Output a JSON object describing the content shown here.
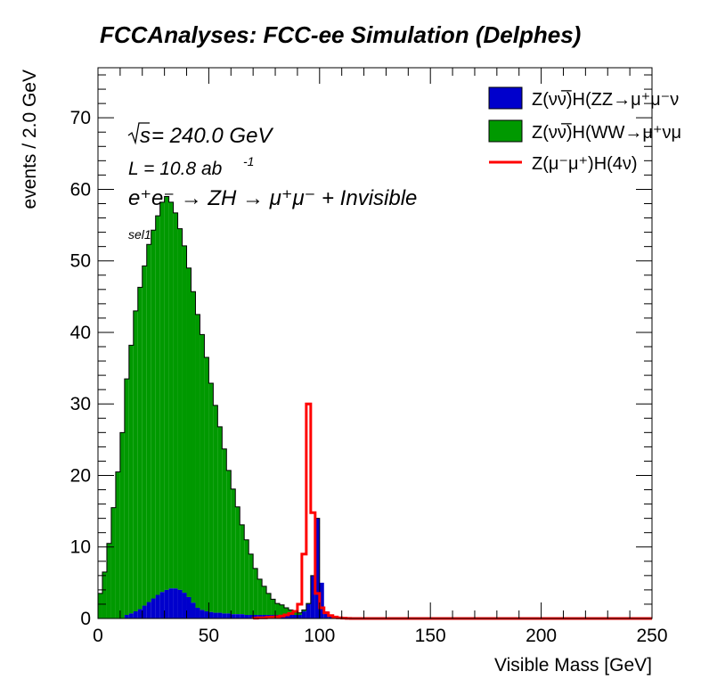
{
  "chart_data": {
    "type": "bar",
    "title": "FCCAnalyses: FCC-ee Simulation (Delphes)",
    "xlabel": "Visible Mass [GeV]",
    "ylabel": "events / 2.0 GeV",
    "xlim": [
      0,
      250
    ],
    "ylim": [
      0,
      77
    ],
    "bin_width": 2.0,
    "x_ticks": [
      "0",
      "50",
      "100",
      "150",
      "200",
      "250"
    ],
    "y_ticks": [
      "0",
      "10",
      "20",
      "30",
      "40",
      "50",
      "60",
      "70"
    ],
    "annotations": {
      "sqrt_s_prefix": "s",
      "sqrt_s_value": " = 240.0 GeV",
      "lumi_prefix": "L = 10.8 ab",
      "lumi_exp": "-1",
      "process": "e⁺e⁻ → ZH → μ⁺μ⁻ + Invisible",
      "selection": "sel1"
    },
    "legend_position": "top-right",
    "series": [
      {
        "name": "Z(νν̅)H(ZZ→μ⁺μ⁻ν",
        "style": "stacked-fill",
        "color": "#0000cc",
        "x0": 12,
        "values": [
          0.5,
          0.7,
          1.0,
          1.3,
          1.8,
          2.3,
          2.8,
          3.3,
          3.7,
          4.0,
          4.2,
          4.2,
          4.0,
          3.6,
          3.0,
          2.2,
          1.5,
          1.2,
          1.0,
          0.9,
          0.8,
          0.8,
          0.7,
          0.7,
          0.6,
          0.6,
          0.6,
          0.5,
          0.5,
          0.5,
          0.5,
          0.5,
          0.5,
          0.5,
          0.5,
          0.5,
          0.5,
          0.5,
          0.5,
          0.5,
          1.0,
          2.0,
          6.0,
          14.0,
          5.0,
          1.0,
          0.5
        ]
      },
      {
        "name": "Z(νν̅)H(WW→μ⁺νμ",
        "style": "stacked-fill",
        "color": "#009900",
        "x0": 0,
        "values": [
          3.5,
          6.5,
          10.5,
          15.5,
          20.5,
          26.0,
          33.0,
          37.5,
          42.0,
          45.0,
          47.5,
          50.0,
          51.5,
          53.0,
          54.5,
          55.0,
          54.0,
          52.5,
          50.5,
          48.5,
          46.0,
          43.5,
          41.0,
          38.5,
          35.5,
          32.0,
          29.0,
          26.0,
          23.0,
          20.0,
          17.5,
          15.0,
          12.5,
          10.5,
          8.5,
          6.5,
          5.0,
          4.0,
          3.0,
          2.2,
          1.6,
          1.4,
          1.0,
          0.7,
          0.5,
          0.3,
          0.2,
          0.1
        ]
      },
      {
        "name": "Z(μ⁻μ⁺)H(4ν)",
        "style": "step-line",
        "color": "#ff0000",
        "x0": 70,
        "values": [
          0.05,
          0.1,
          0.1,
          0.15,
          0.2,
          0.25,
          0.35,
          0.5,
          0.7,
          1.0,
          2.0,
          9.0,
          30.0,
          14.8,
          3.5,
          1.5,
          0.8,
          0.4,
          0.2,
          0.1,
          0.05,
          0.02
        ]
      }
    ]
  }
}
